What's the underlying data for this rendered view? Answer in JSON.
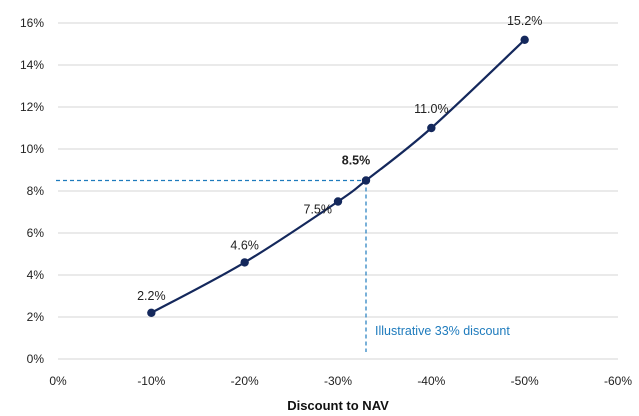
{
  "chart_data": {
    "type": "line",
    "xlabel": "Discount to NAV",
    "ylabel": "",
    "x_ticks": [
      "0%",
      "-10%",
      "-20%",
      "-30%",
      "-40%",
      "-50%",
      "-60%"
    ],
    "y_ticks": [
      "0%",
      "2%",
      "4%",
      "6%",
      "8%",
      "10%",
      "12%",
      "14%",
      "16%"
    ],
    "xlim": [
      0,
      -60
    ],
    "ylim": [
      0,
      16
    ],
    "grid": "horizontal",
    "x": [
      -10,
      -20,
      -30,
      -33,
      -40,
      -50
    ],
    "values": [
      2.2,
      4.6,
      7.5,
      8.5,
      11.0,
      15.2
    ],
    "data_labels": [
      "2.2%",
      "4.6%",
      "7.5%",
      "8.5%",
      "11.0%",
      "15.2%"
    ],
    "highlight_index": 3,
    "annotation": "Illustrative 33% discount",
    "colors": {
      "line": "#14285c",
      "highlight": "#1e7bbd",
      "grid": "#d6d6d6"
    }
  }
}
